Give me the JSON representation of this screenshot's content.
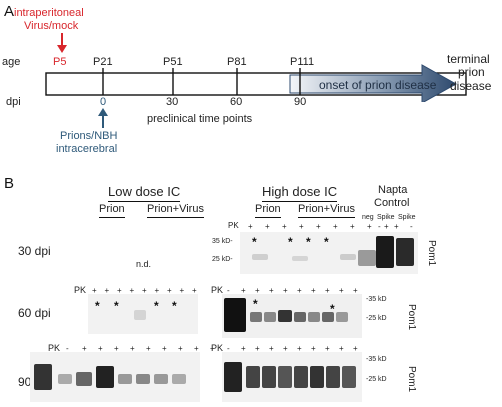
{
  "panelA": {
    "letter": "A",
    "injection_label_line1": "intraperitoneal",
    "injection_label_line2": "Virus/mock",
    "row_age": "age",
    "row_dpi": "dpi",
    "age_ticks": [
      "P5",
      "P21",
      "P51",
      "P81",
      "P111"
    ],
    "dpi_ticks": [
      "0",
      "30",
      "60",
      "90"
    ],
    "onset_label": "onset of prion disease",
    "terminal_line1": "terminal",
    "terminal_line2": "prion",
    "terminal_line3": "disease",
    "preclinical_label": "preclinical time points",
    "intracerebral_line1": "Prions/NBH",
    "intracerebral_line2": "intracerebral",
    "colors": {
      "red": "#d8262c",
      "blue": "#2f5a7a",
      "arrow": "#3a5a7e"
    }
  },
  "panelB": {
    "letter": "B",
    "low_dose_title": "Low dose IC",
    "high_dose_title": "High dose IC",
    "napta_title_line1": "Napta",
    "napta_title_line2": "Control",
    "group_prion": "Prion",
    "group_prion_virus": "Prion+Virus",
    "napta_lanes": [
      "neg",
      "Spike",
      "Spike"
    ],
    "pk_label": "PK",
    "not_done": "n.d.",
    "rows": [
      "30 dpi",
      "60 dpi",
      "90 dpi"
    ],
    "antibody": "Pom1",
    "mw_markers": {
      "kd35": "35 kD-",
      "kd25": "25 kD-",
      "kd35r": "-35 kD",
      "kd25r": "-25 kD"
    },
    "pk_signs": {
      "high30": [
        "+",
        "+",
        "+",
        "+",
        "+",
        "+",
        "+",
        "+",
        "+"
      ],
      "napta30": [
        "-",
        "+",
        "-"
      ],
      "low60": [
        "+",
        "+",
        "+",
        "+",
        "+",
        "+",
        "+",
        "+",
        "+"
      ],
      "high60": [
        "-",
        "+",
        "+",
        "+",
        "+",
        "+",
        "+",
        "+",
        "+",
        "+"
      ],
      "low90": [
        "-",
        "+",
        "+",
        "+",
        "+",
        "+",
        "+",
        "+",
        "+",
        "+"
      ],
      "high90": [
        "-",
        "+",
        "+",
        "+",
        "+",
        "+",
        "+",
        "+",
        "+",
        "+"
      ]
    },
    "star": "*"
  }
}
